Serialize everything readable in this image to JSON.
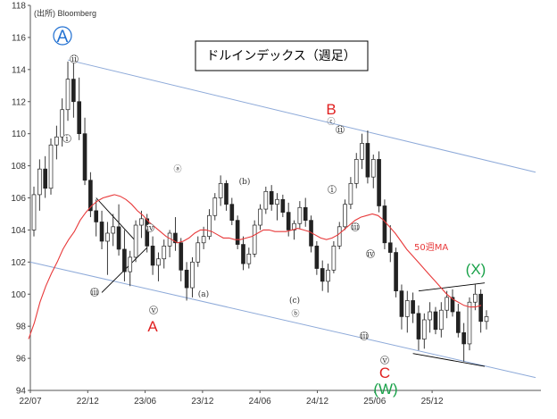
{
  "chart_data": {
    "type": "candlestick",
    "title": "ドルインデックス（週足）",
    "source": "(出所) Bloomberg",
    "ylim": [
      94,
      118
    ],
    "yticks": [
      94,
      96,
      98,
      100,
      102,
      104,
      106,
      108,
      110,
      112,
      114,
      116,
      118
    ],
    "xticks": [
      "22/07",
      "22/12",
      "23/06",
      "23/12",
      "24/06",
      "24/12",
      "25/06",
      "25/12"
    ],
    "grid": false,
    "colors": {
      "candle": "#222222",
      "moving_average": "#e8393a",
      "channel": "#8eaad9",
      "triangle_lines": "#000000",
      "label_red": "#e02020",
      "label_green": "#1aa24a",
      "label_blue": "#1f6fd1"
    },
    "moving_average": {
      "name": "50週MA",
      "values": [
        97.2,
        98.2,
        99.5,
        100.5,
        101.3,
        102.0,
        102.8,
        103.4,
        103.9,
        104.6,
        105.1,
        105.5,
        105.8,
        106.0,
        106.1,
        106.2,
        106.1,
        105.9,
        105.6,
        105.2,
        104.9,
        104.5,
        104.2,
        103.9,
        103.6,
        103.4,
        103.2,
        103.3,
        103.5,
        103.8,
        104.0,
        104.0,
        103.9,
        103.7,
        103.5,
        103.5,
        103.4,
        103.4,
        103.5,
        103.6,
        103.8,
        104.0,
        104.0,
        103.9,
        103.9,
        103.9,
        104.0,
        104.1,
        104.0,
        103.9,
        103.7,
        103.5,
        103.4,
        103.5,
        103.7,
        104.0,
        104.3,
        104.6,
        104.8,
        104.9,
        105.0,
        104.9,
        104.6,
        104.2,
        103.8,
        103.3,
        102.8,
        102.4,
        102.0,
        101.6,
        101.2,
        100.8,
        100.4,
        100.0,
        99.7,
        99.5,
        99.3,
        99.2,
        99.2,
        99.3
      ]
    },
    "candles": [
      {
        "o": 104.0,
        "h": 106.7,
        "l": 103.6,
        "c": 106.2
      },
      {
        "o": 106.2,
        "h": 108.4,
        "l": 105.2,
        "c": 107.8
      },
      {
        "o": 107.8,
        "h": 108.6,
        "l": 106.0,
        "c": 106.6
      },
      {
        "o": 106.6,
        "h": 109.7,
        "l": 106.2,
        "c": 109.3
      },
      {
        "o": 109.3,
        "h": 110.5,
        "l": 108.4,
        "c": 109.8
      },
      {
        "o": 109.8,
        "h": 112.2,
        "l": 109.2,
        "c": 111.5
      },
      {
        "o": 111.5,
        "h": 114.5,
        "l": 110.8,
        "c": 113.4
      },
      {
        "o": 113.4,
        "h": 114.8,
        "l": 111.0,
        "c": 112.0
      },
      {
        "o": 112.0,
        "h": 113.5,
        "l": 109.6,
        "c": 110.0
      },
      {
        "o": 110.0,
        "h": 111.0,
        "l": 106.8,
        "c": 107.1
      },
      {
        "o": 107.1,
        "h": 107.6,
        "l": 104.8,
        "c": 105.2
      },
      {
        "o": 105.2,
        "h": 105.9,
        "l": 103.6,
        "c": 104.5
      },
      {
        "o": 104.5,
        "h": 105.2,
        "l": 102.8,
        "c": 103.3
      },
      {
        "o": 103.3,
        "h": 104.5,
        "l": 101.2,
        "c": 103.8
      },
      {
        "o": 103.8,
        "h": 105.0,
        "l": 103.0,
        "c": 104.2
      },
      {
        "o": 104.2,
        "h": 105.6,
        "l": 102.4,
        "c": 102.8
      },
      {
        "o": 102.8,
        "h": 104.0,
        "l": 100.8,
        "c": 101.4
      },
      {
        "o": 101.4,
        "h": 102.7,
        "l": 100.5,
        "c": 102.3
      },
      {
        "o": 102.3,
        "h": 104.6,
        "l": 102.0,
        "c": 104.3
      },
      {
        "o": 104.3,
        "h": 105.2,
        "l": 103.5,
        "c": 104.7
      },
      {
        "o": 104.7,
        "h": 105.0,
        "l": 102.6,
        "c": 103.0
      },
      {
        "o": 103.0,
        "h": 103.6,
        "l": 101.2,
        "c": 101.8
      },
      {
        "o": 101.8,
        "h": 102.6,
        "l": 100.8,
        "c": 102.2
      },
      {
        "o": 102.2,
        "h": 103.4,
        "l": 101.6,
        "c": 103.0
      },
      {
        "o": 103.0,
        "h": 104.0,
        "l": 102.3,
        "c": 103.8
      },
      {
        "o": 103.8,
        "h": 104.8,
        "l": 102.7,
        "c": 103.2
      },
      {
        "o": 103.2,
        "h": 103.5,
        "l": 100.8,
        "c": 101.5
      },
      {
        "o": 101.5,
        "h": 102.0,
        "l": 99.6,
        "c": 100.4
      },
      {
        "o": 100.4,
        "h": 102.3,
        "l": 99.8,
        "c": 102.0
      },
      {
        "o": 102.0,
        "h": 103.6,
        "l": 101.7,
        "c": 103.2
      },
      {
        "o": 103.2,
        "h": 104.2,
        "l": 102.8,
        "c": 103.6
      },
      {
        "o": 103.6,
        "h": 105.3,
        "l": 103.4,
        "c": 104.9
      },
      {
        "o": 104.9,
        "h": 106.3,
        "l": 104.6,
        "c": 106.0
      },
      {
        "o": 106.0,
        "h": 107.4,
        "l": 105.5,
        "c": 106.9
      },
      {
        "o": 106.9,
        "h": 107.1,
        "l": 105.2,
        "c": 105.6
      },
      {
        "o": 105.6,
        "h": 106.0,
        "l": 104.3,
        "c": 104.6
      },
      {
        "o": 104.6,
        "h": 104.9,
        "l": 102.8,
        "c": 103.1
      },
      {
        "o": 103.1,
        "h": 103.6,
        "l": 101.5,
        "c": 101.9
      },
      {
        "o": 101.9,
        "h": 102.9,
        "l": 101.6,
        "c": 102.5
      },
      {
        "o": 102.5,
        "h": 104.6,
        "l": 102.3,
        "c": 104.3
      },
      {
        "o": 104.3,
        "h": 105.6,
        "l": 104.0,
        "c": 105.3
      },
      {
        "o": 105.3,
        "h": 106.7,
        "l": 105.0,
        "c": 106.4
      },
      {
        "o": 106.4,
        "h": 106.8,
        "l": 105.2,
        "c": 105.6
      },
      {
        "o": 105.6,
        "h": 106.3,
        "l": 104.6,
        "c": 105.9
      },
      {
        "o": 105.9,
        "h": 106.2,
        "l": 104.8,
        "c": 105.1
      },
      {
        "o": 105.1,
        "h": 105.7,
        "l": 103.6,
        "c": 104.0
      },
      {
        "o": 104.0,
        "h": 104.6,
        "l": 103.4,
        "c": 104.4
      },
      {
        "o": 104.4,
        "h": 105.8,
        "l": 104.1,
        "c": 105.4
      },
      {
        "o": 105.4,
        "h": 106.0,
        "l": 104.2,
        "c": 104.6
      },
      {
        "o": 104.6,
        "h": 104.9,
        "l": 102.6,
        "c": 103.0
      },
      {
        "o": 103.0,
        "h": 103.3,
        "l": 101.2,
        "c": 101.6
      },
      {
        "o": 101.6,
        "h": 102.1,
        "l": 100.2,
        "c": 100.8
      },
      {
        "o": 100.8,
        "h": 101.9,
        "l": 100.1,
        "c": 101.5
      },
      {
        "o": 101.5,
        "h": 103.3,
        "l": 101.3,
        "c": 103.0
      },
      {
        "o": 103.0,
        "h": 104.5,
        "l": 102.8,
        "c": 104.2
      },
      {
        "o": 104.2,
        "h": 105.9,
        "l": 104.0,
        "c": 105.6
      },
      {
        "o": 105.6,
        "h": 107.3,
        "l": 105.3,
        "c": 106.9
      },
      {
        "o": 106.9,
        "h": 108.8,
        "l": 106.6,
        "c": 108.4
      },
      {
        "o": 108.4,
        "h": 110.0,
        "l": 107.8,
        "c": 109.4
      },
      {
        "o": 109.4,
        "h": 110.2,
        "l": 106.9,
        "c": 107.3
      },
      {
        "o": 107.3,
        "h": 108.7,
        "l": 106.6,
        "c": 108.4
      },
      {
        "o": 108.4,
        "h": 108.9,
        "l": 105.1,
        "c": 105.5
      },
      {
        "o": 105.5,
        "h": 105.9,
        "l": 102.8,
        "c": 103.2
      },
      {
        "o": 103.2,
        "h": 104.3,
        "l": 102.0,
        "c": 102.6
      },
      {
        "o": 102.6,
        "h": 102.9,
        "l": 99.8,
        "c": 100.2
      },
      {
        "o": 100.2,
        "h": 100.6,
        "l": 97.8,
        "c": 98.6
      },
      {
        "o": 98.6,
        "h": 100.2,
        "l": 97.6,
        "c": 99.6
      },
      {
        "o": 99.6,
        "h": 100.1,
        "l": 98.2,
        "c": 98.8
      },
      {
        "o": 98.8,
        "h": 99.3,
        "l": 96.5,
        "c": 97.2
      },
      {
        "o": 97.2,
        "h": 98.8,
        "l": 96.6,
        "c": 98.4
      },
      {
        "o": 98.4,
        "h": 99.5,
        "l": 97.6,
        "c": 98.9
      },
      {
        "o": 98.9,
        "h": 99.2,
        "l": 97.5,
        "c": 97.8
      },
      {
        "o": 97.8,
        "h": 99.5,
        "l": 97.3,
        "c": 99.0
      },
      {
        "o": 99.0,
        "h": 100.2,
        "l": 98.5,
        "c": 99.8
      },
      {
        "o": 99.8,
        "h": 100.3,
        "l": 98.6,
        "c": 98.9
      },
      {
        "o": 98.9,
        "h": 99.4,
        "l": 97.3,
        "c": 97.6
      },
      {
        "o": 97.6,
        "h": 98.2,
        "l": 95.8,
        "c": 96.9
      },
      {
        "o": 96.9,
        "h": 99.8,
        "l": 96.5,
        "c": 99.5
      },
      {
        "o": 99.5,
        "h": 100.6,
        "l": 99.0,
        "c": 100.0
      },
      {
        "o": 100.0,
        "h": 100.3,
        "l": 97.6,
        "c": 98.3
      },
      {
        "o": 98.3,
        "h": 99.0,
        "l": 97.8,
        "c": 98.6
      }
    ],
    "annotations": {
      "wave_A_top": "A",
      "wave_A": "A",
      "wave_B": "B",
      "wave_C": "C",
      "wave_W": "(W)",
      "wave_X": "(X)",
      "sub_a": "(a)",
      "sub_b": "(b)",
      "sub_c": "(c)",
      "circled": [
        "ⓐ",
        "ⓑ",
        "ⓒ"
      ],
      "roman": [
        "i",
        "ii",
        "iii",
        "iv",
        "v"
      ]
    }
  }
}
